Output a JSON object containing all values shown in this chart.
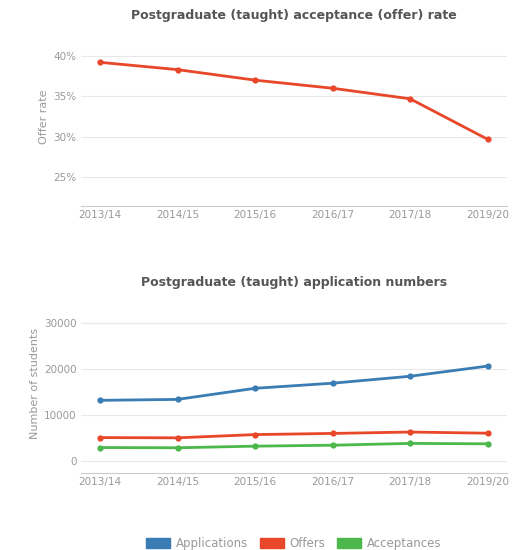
{
  "years": [
    "2013/14",
    "2014/15",
    "2015/16",
    "2016/17",
    "2017/18",
    "2019/20"
  ],
  "offer_rate": [
    0.392,
    0.383,
    0.37,
    0.36,
    0.347,
    0.297
  ],
  "applications": [
    13200,
    13400,
    15800,
    16900,
    18400,
    20600
  ],
  "offers": [
    5150,
    5100,
    5800,
    6050,
    6350,
    6100
  ],
  "acceptances": [
    3000,
    2950,
    3300,
    3500,
    3900,
    3800
  ],
  "title1": "Postgraduate (taught) acceptance (offer) rate",
  "title2": "Postgraduate (taught) application numbers",
  "ylabel1": "Offer rate",
  "ylabel2": "Number of students",
  "legend_labels": [
    "Applications",
    "Offers",
    "Acceptances"
  ],
  "color_blue": "#3A7DB5",
  "color_red": "#E8472A",
  "color_green": "#4CB84C",
  "bg_color": "#FFFFFF",
  "title_color": "#555555",
  "tick_color": "#999999",
  "grid_color": "#E8E8E8",
  "spine_color": "#CCCCCC",
  "ylim1": [
    0.215,
    0.435
  ],
  "yticks1": [
    0.25,
    0.3,
    0.35,
    0.4
  ],
  "ylim2": [
    -2500,
    36000
  ],
  "yticks2": [
    0,
    10000,
    20000,
    30000
  ]
}
